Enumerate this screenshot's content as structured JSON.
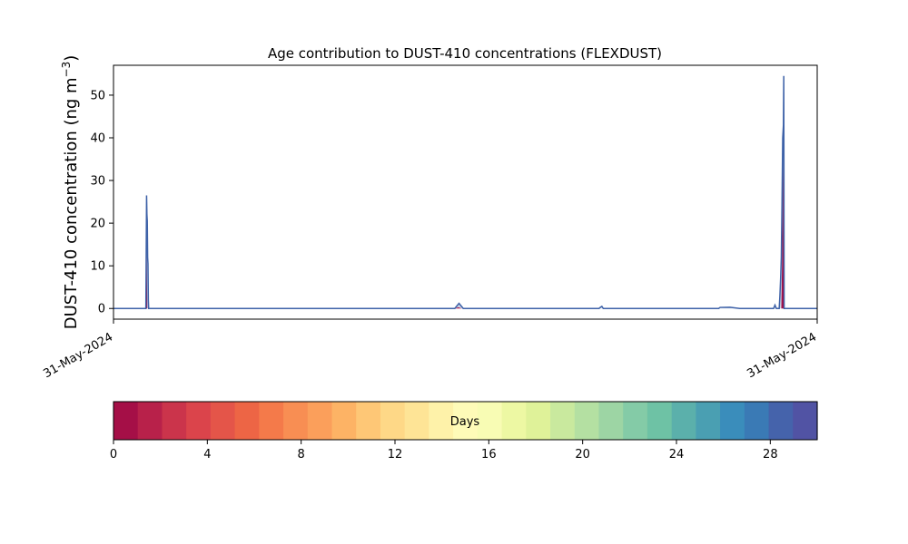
{
  "chart_data": {
    "type": "area",
    "title": "Age contribution to DUST-410 concentrations (FLEXDUST)",
    "ylabel_main": "DUST-410 concentration (ng m",
    "ylabel_sup": "−3",
    "ylabel_end": ")",
    "xlabel": "",
    "x_tick_labels": [
      "31-May-2024",
      "31-May-2024"
    ],
    "x_domain_frac": [
      0,
      1
    ],
    "ylim": [
      -2.5,
      57
    ],
    "y_ticks": [
      0,
      10,
      20,
      30,
      40,
      50
    ],
    "grid": false,
    "stack_colors": {
      "day_0_1": "#a50f47",
      "day_28_30": "#3e62a8"
    },
    "series": [
      {
        "name": "total",
        "points": [
          [
            0.0,
            0
          ],
          [
            0.046,
            0
          ],
          [
            0.047,
            26.5
          ],
          [
            0.0475,
            22
          ],
          [
            0.048,
            20.5
          ],
          [
            0.0485,
            12
          ],
          [
            0.049,
            10.5
          ],
          [
            0.0495,
            2
          ],
          [
            0.05,
            0
          ],
          [
            0.06,
            0
          ],
          [
            0.485,
            0
          ],
          [
            0.488,
            0.6
          ],
          [
            0.491,
            1.2
          ],
          [
            0.494,
            0.6
          ],
          [
            0.497,
            0
          ],
          [
            0.69,
            0
          ],
          [
            0.692,
            0.3
          ],
          [
            0.694,
            0.5
          ],
          [
            0.696,
            0
          ],
          [
            0.86,
            0
          ],
          [
            0.862,
            0.25
          ],
          [
            0.876,
            0.3
          ],
          [
            0.89,
            0
          ],
          [
            0.938,
            0
          ],
          [
            0.94,
            0.8
          ],
          [
            0.942,
            0
          ],
          [
            0.946,
            0
          ],
          [
            0.947,
            3
          ],
          [
            0.948,
            7
          ],
          [
            0.949,
            12
          ],
          [
            0.95,
            25
          ],
          [
            0.951,
            40
          ],
          [
            0.952,
            43
          ],
          [
            0.9525,
            54.5
          ],
          [
            0.953,
            0
          ],
          [
            1.0,
            0
          ]
        ]
      },
      {
        "name": "fresh",
        "points": [
          [
            0.0,
            0
          ],
          [
            0.046,
            0
          ],
          [
            0.047,
            17.8
          ],
          [
            0.0475,
            8.5
          ],
          [
            0.048,
            0
          ],
          [
            0.485,
            0
          ],
          [
            0.49,
            0.3
          ],
          [
            0.495,
            0
          ],
          [
            0.946,
            0
          ],
          [
            0.949,
            0
          ],
          [
            0.95,
            10
          ],
          [
            0.951,
            30
          ],
          [
            0.9515,
            36.5
          ],
          [
            0.952,
            17.5
          ],
          [
            0.953,
            0
          ],
          [
            1.0,
            0
          ]
        ]
      }
    ],
    "colorbar": {
      "label": "Days",
      "range": [
        0,
        30
      ],
      "ticks": [
        0,
        4,
        8,
        12,
        16,
        20,
        24,
        28
      ],
      "colors": [
        "#a50f47",
        "#b8214a",
        "#cb344b",
        "#db444b",
        "#e45549",
        "#ed6545",
        "#f47a4a",
        "#f88e53",
        "#fb9f5b",
        "#fdb365",
        "#fec776",
        "#fed887",
        "#fee496",
        "#fef2a9",
        "#fefbb8",
        "#f8fcb4",
        "#edf8a3",
        "#dff299",
        "#c9e99e",
        "#b4e0a2",
        "#9dd5a4",
        "#84cba7",
        "#6ec2a5",
        "#5bb0ab",
        "#4a9fb2",
        "#3a8dbb",
        "#3a7ab5",
        "#4563ab",
        "#5153a4"
      ]
    }
  }
}
